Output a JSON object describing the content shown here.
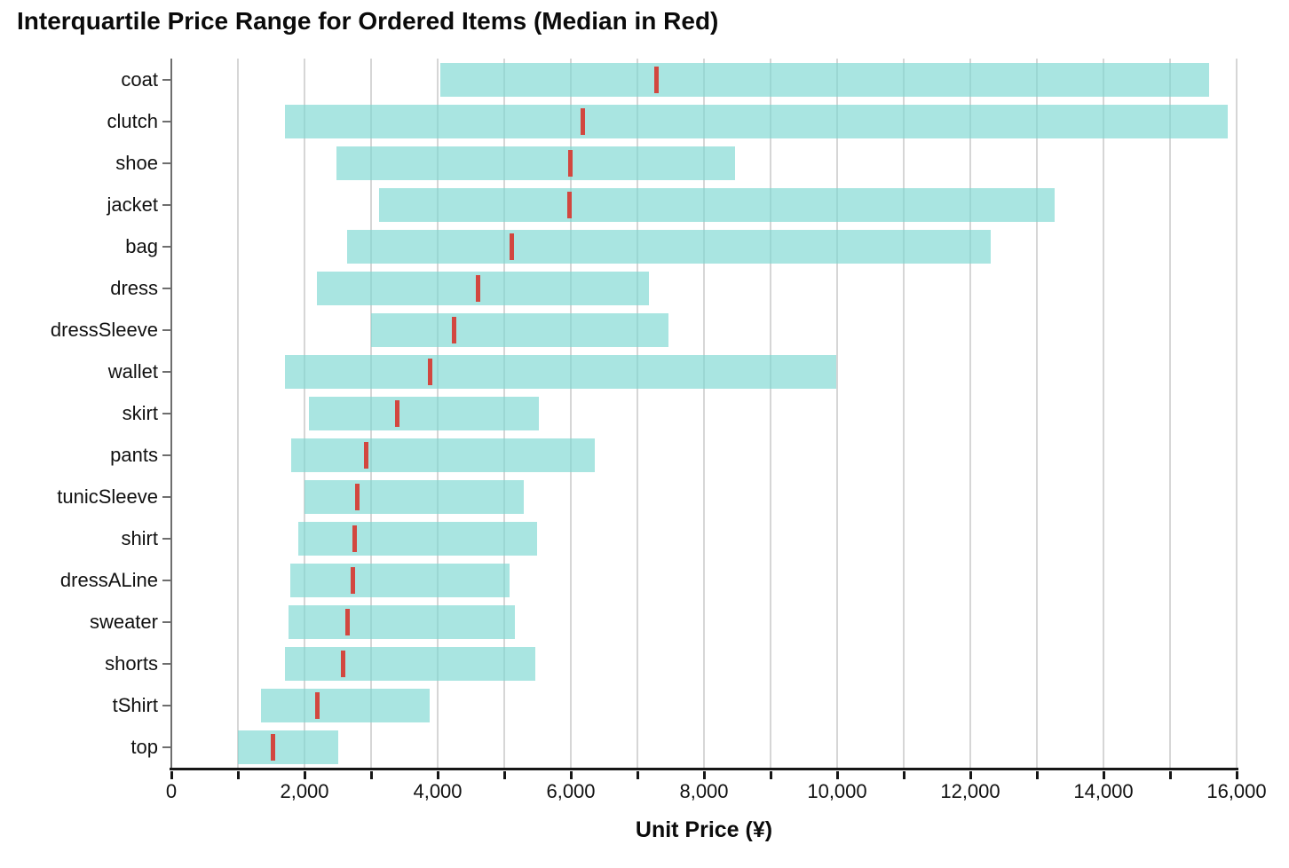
{
  "chart_data": {
    "type": "bar",
    "subtype": "horizontal-interquartile-range-bar",
    "title": "Interquartile Price Range for Ordered Items (Median in Red)",
    "xlabel": "Unit Price (¥)",
    "ylabel": "",
    "xlim": [
      0,
      16000
    ],
    "x_tick_step": 1000,
    "x_label_step": 2000,
    "x_tick_labels": [
      "0",
      "2,000",
      "4,000",
      "6,000",
      "8,000",
      "10,000",
      "12,000",
      "14,000",
      "16,000"
    ],
    "grid": true,
    "legend_position": "none",
    "categories": [
      "coat",
      "clutch",
      "shoe",
      "jacket",
      "bag",
      "dress",
      "dressSleeve",
      "wallet",
      "skirt",
      "pants",
      "tunicSleeve",
      "shirt",
      "dressALine",
      "sweater",
      "shorts",
      "tShirt",
      "top"
    ],
    "series": [
      {
        "item": "coat",
        "q1": 4040,
        "median": 7290,
        "q3": 15590
      },
      {
        "item": "clutch",
        "q1": 1710,
        "median": 6180,
        "q3": 15870
      },
      {
        "item": "shoe",
        "q1": 2480,
        "median": 5990,
        "q3": 8460
      },
      {
        "item": "jacket",
        "q1": 3120,
        "median": 5980,
        "q3": 13260
      },
      {
        "item": "bag",
        "q1": 2640,
        "median": 5110,
        "q3": 12300
      },
      {
        "item": "dress",
        "q1": 2190,
        "median": 4600,
        "q3": 7170
      },
      {
        "item": "dressSleeve",
        "q1": 3000,
        "median": 4250,
        "q3": 7460
      },
      {
        "item": "wallet",
        "q1": 1710,
        "median": 3890,
        "q3": 9990
      },
      {
        "item": "skirt",
        "q1": 2060,
        "median": 3390,
        "q3": 5520
      },
      {
        "item": "pants",
        "q1": 1800,
        "median": 2930,
        "q3": 6360
      },
      {
        "item": "tunicSleeve",
        "q1": 2000,
        "median": 2790,
        "q3": 5290
      },
      {
        "item": "shirt",
        "q1": 1900,
        "median": 2750,
        "q3": 5490
      },
      {
        "item": "dressALine",
        "q1": 1790,
        "median": 2730,
        "q3": 5080
      },
      {
        "item": "sweater",
        "q1": 1760,
        "median": 2640,
        "q3": 5160
      },
      {
        "item": "shorts",
        "q1": 1700,
        "median": 2580,
        "q3": 5470
      },
      {
        "item": "tShirt",
        "q1": 1340,
        "median": 2190,
        "q3": 3880
      },
      {
        "item": "top",
        "q1": 1000,
        "median": 1530,
        "q3": 2510
      }
    ],
    "colors": {
      "bar": "#7cd8d1",
      "bar_opacity": 0.66,
      "median": "#d2473f",
      "gridline": "#d6d6d6",
      "x_axis": "#161616",
      "y_axis": "#6e6e6e",
      "text": "#000000"
    }
  }
}
